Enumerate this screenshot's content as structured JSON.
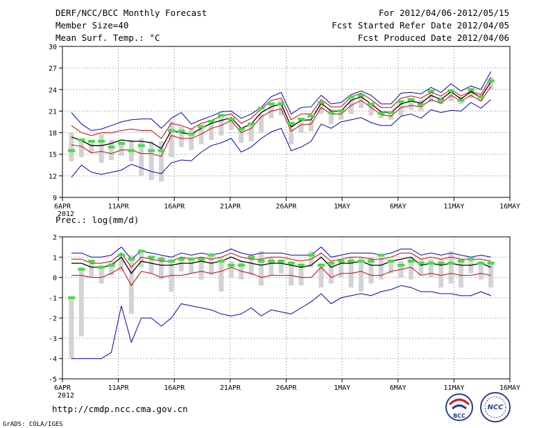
{
  "header": {
    "left": [
      "DERF/NCC/BCC Monthly Forecast",
      "Member Size=40",
      "Mean Surf. Temp.: °C"
    ],
    "right": [
      "For 2012/04/06-2012/05/15",
      "Fcst Started Refer Date 2012/04/05",
      "Fcst Produced Date 2012/04/06"
    ]
  },
  "footer": {
    "url": "http://cmdp.ncc.cma.gov.cn",
    "credit": "GrADS: COLA/IGES",
    "logo_bcc": "BCC",
    "logo_ncc": "NCC"
  },
  "colors": {
    "envelope": "#0000cc",
    "spread": "#cc0000",
    "mean": "#000000",
    "box": "#d3d3d3",
    "median": "#44dd44",
    "grid": "#777777"
  },
  "chart_data": [
    {
      "type": "box",
      "name": "temperature",
      "ylabel": "Mean Surf. Temp.: °C",
      "ylim": [
        9,
        30
      ],
      "yticks": [
        9,
        12,
        15,
        18,
        21,
        24,
        27,
        30
      ],
      "xlim": [
        0,
        40
      ],
      "xtick_positions": [
        0,
        5,
        10,
        15,
        20,
        25,
        30,
        35,
        40
      ],
      "xtick_labels": [
        "6APR",
        "11APR",
        "16APR",
        "21APR",
        "26APR",
        "1MAY",
        "6MAY",
        "11MAY",
        "16MAY"
      ],
      "year_label": "2012",
      "grid": true,
      "series": [
        {
          "name": "max",
          "values": [
            20.8,
            19.2,
            18.3,
            18.5,
            19.0,
            19.5,
            19.8,
            19.9,
            19.9,
            18.6,
            20.0,
            20.8,
            19.2,
            19.8,
            20.3,
            20.9,
            21.0,
            20.0,
            20.6,
            21.5,
            23.0,
            23.6,
            20.6,
            21.5,
            21.6,
            23.2,
            22.0,
            22.2,
            23.3,
            23.8,
            23.2,
            22.0,
            22.0,
            23.5,
            23.6,
            23.4,
            24.3,
            23.6,
            24.8,
            23.8,
            24.5,
            24.0,
            26.5
          ]
        },
        {
          "name": "upper",
          "values": [
            19.0,
            18.0,
            17.6,
            18.0,
            18.0,
            18.3,
            18.5,
            18.3,
            18.3,
            17.2,
            19.3,
            19.0,
            18.5,
            19.3,
            19.7,
            20.3,
            20.6,
            19.3,
            20.0,
            21.3,
            22.5,
            22.8,
            19.8,
            20.6,
            20.6,
            22.6,
            21.6,
            21.6,
            23.0,
            23.5,
            22.6,
            21.5,
            21.5,
            22.8,
            23.1,
            22.8,
            23.6,
            23.1,
            24.0,
            23.1,
            23.8,
            23.3,
            25.7
          ]
        },
        {
          "name": "mean",
          "values": [
            17.4,
            16.9,
            16.2,
            16.2,
            16.5,
            17.0,
            16.8,
            16.8,
            16.6,
            15.8,
            18.3,
            18.0,
            17.8,
            18.6,
            19.3,
            19.7,
            20.1,
            18.6,
            19.2,
            20.8,
            21.6,
            22.0,
            18.8,
            19.7,
            19.8,
            22.1,
            21.0,
            21.0,
            22.5,
            23.0,
            22.0,
            20.9,
            20.8,
            22.0,
            22.4,
            22.1,
            23.2,
            22.6,
            23.7,
            22.7,
            23.7,
            22.9,
            25.1
          ]
        },
        {
          "name": "lower",
          "values": [
            16.3,
            16.1,
            15.2,
            15.4,
            15.1,
            15.6,
            15.6,
            15.1,
            15.1,
            14.7,
            17.6,
            17.2,
            17.2,
            17.8,
            18.6,
            19.0,
            19.7,
            18.0,
            18.6,
            20.2,
            21.0,
            21.3,
            18.2,
            19.1,
            19.2,
            21.5,
            20.6,
            20.6,
            21.8,
            22.5,
            21.5,
            20.5,
            20.3,
            21.5,
            21.8,
            21.6,
            22.6,
            22.1,
            23.2,
            22.4,
            23.2,
            22.4,
            24.4
          ]
        },
        {
          "name": "min",
          "values": [
            11.8,
            13.5,
            12.5,
            12.2,
            12.5,
            12.8,
            13.6,
            13.1,
            12.6,
            12.3,
            13.8,
            14.2,
            14.1,
            15.3,
            16.2,
            16.6,
            17.2,
            15.3,
            16.0,
            17.2,
            18.1,
            18.6,
            15.5,
            16.0,
            16.8,
            19.2,
            18.6,
            19.5,
            19.8,
            20.1,
            19.4,
            19.0,
            19.0,
            20.3,
            20.6,
            20.0,
            21.2,
            20.8,
            21.1,
            21.0,
            22.2,
            21.4,
            22.6
          ]
        },
        {
          "name": "box_high",
          "values": [
            18.0,
            17.0,
            16.8,
            17.8,
            17.0,
            16.8,
            17.0,
            17.2,
            16.8,
            16.8,
            19.6,
            18.8,
            18.5,
            19.2,
            19.4,
            20.2,
            20.0,
            18.5,
            19.0,
            20.6,
            21.8,
            22.5,
            19.2,
            19.6,
            19.8,
            22.3,
            21.3,
            21.3,
            22.8,
            23.2,
            22.2,
            20.8,
            20.8,
            22.5,
            22.8,
            22.6,
            23.8,
            23.0,
            23.8,
            23.0,
            23.7,
            23.2,
            25.7
          ]
        },
        {
          "name": "box_low",
          "values": [
            14.0,
            14.6,
            15.2,
            13.8,
            14.2,
            14.8,
            14.0,
            12.0,
            11.4,
            11.2,
            14.6,
            16.0,
            15.6,
            16.4,
            17.0,
            17.6,
            18.4,
            16.6,
            16.8,
            18.0,
            20.0,
            20.4,
            16.4,
            18.0,
            18.2,
            20.6,
            19.2,
            19.8,
            20.6,
            21.4,
            20.4,
            20.0,
            19.8,
            20.4,
            21.2,
            21.0,
            22.2,
            22.0,
            22.4,
            22.0,
            22.8,
            22.4,
            24.0
          ]
        },
        {
          "name": "median",
          "values": [
            15.5,
            17.0,
            16.8,
            16.8,
            16.0,
            16.5,
            15.5,
            16.2,
            15.5,
            15.5,
            18.3,
            18.2,
            17.8,
            18.8,
            19.6,
            20.4,
            19.9,
            18.5,
            19.2,
            21.4,
            22.0,
            22.0,
            19.3,
            19.9,
            20.3,
            22.2,
            20.8,
            21.0,
            23.0,
            23.2,
            22.0,
            20.7,
            20.8,
            22.3,
            22.6,
            21.9,
            23.8,
            22.5,
            23.8,
            22.5,
            24.0,
            23.0,
            25.2
          ]
        }
      ]
    },
    {
      "type": "box",
      "name": "precipitation",
      "ylabel": "Prec.: log(mm/d)",
      "ylim": [
        -5,
        2
      ],
      "yticks": [
        -5,
        -4,
        -3,
        -2,
        -1,
        0,
        1,
        2
      ],
      "xlim": [
        0,
        40
      ],
      "xtick_positions": [
        0,
        5,
        10,
        15,
        20,
        25,
        30,
        35,
        40
      ],
      "xtick_labels": [
        "6APR",
        "11APR",
        "16APR",
        "21APR",
        "26APR",
        "1MAY",
        "6MAY",
        "11MAY",
        "16MAY"
      ],
      "year_label": "2012",
      "grid": true,
      "series": [
        {
          "name": "max",
          "values": [
            1.2,
            1.2,
            1.0,
            1.0,
            1.1,
            1.5,
            0.9,
            1.3,
            1.2,
            1.1,
            1.0,
            1.2,
            1.1,
            1.2,
            1.1,
            1.2,
            1.4,
            1.2,
            1.1,
            1.2,
            1.2,
            1.2,
            1.1,
            1.1,
            1.1,
            1.5,
            1.0,
            1.1,
            1.2,
            1.2,
            1.2,
            1.1,
            1.2,
            1.4,
            1.4,
            1.1,
            1.2,
            1.1,
            1.2,
            1.1,
            1.0,
            1.1,
            1.0
          ]
        },
        {
          "name": "upper",
          "values": [
            0.9,
            0.9,
            0.7,
            0.7,
            0.8,
            1.2,
            0.5,
            1.0,
            0.9,
            0.8,
            0.8,
            1.0,
            0.9,
            1.0,
            0.9,
            1.0,
            1.2,
            1.0,
            0.9,
            0.9,
            1.0,
            1.0,
            0.9,
            0.8,
            0.9,
            1.2,
            0.8,
            0.9,
            1.0,
            1.0,
            0.9,
            0.9,
            1.0,
            1.2,
            1.2,
            0.9,
            1.0,
            0.9,
            1.0,
            0.9,
            0.9,
            0.9,
            0.8
          ]
        },
        {
          "name": "mean",
          "values": [
            0.7,
            0.7,
            0.5,
            0.5,
            0.6,
            1.0,
            0.2,
            0.8,
            0.7,
            0.6,
            0.6,
            0.7,
            0.7,
            0.8,
            0.7,
            0.8,
            1.0,
            0.8,
            0.7,
            0.6,
            0.7,
            0.7,
            0.6,
            0.5,
            0.6,
            1.0,
            0.5,
            0.7,
            0.7,
            0.8,
            0.6,
            0.6,
            0.8,
            0.9,
            1.0,
            0.6,
            0.7,
            0.6,
            0.7,
            0.6,
            0.6,
            0.7,
            0.5
          ]
        },
        {
          "name": "lower",
          "values": [
            0.1,
            0.1,
            0.0,
            0.0,
            0.2,
            0.5,
            -0.4,
            0.3,
            0.2,
            0.0,
            0.1,
            0.1,
            0.2,
            0.3,
            0.2,
            0.3,
            0.5,
            0.3,
            0.2,
            0.0,
            0.1,
            0.1,
            0.1,
            0.0,
            0.0,
            0.5,
            0.0,
            0.2,
            0.2,
            0.3,
            0.1,
            0.1,
            0.3,
            0.4,
            0.5,
            0.1,
            0.2,
            0.1,
            0.2,
            0.1,
            0.1,
            0.2,
            0.1
          ]
        },
        {
          "name": "min",
          "values": [
            -4.0,
            -4.0,
            -4.0,
            -4.0,
            -3.7,
            -1.4,
            -3.2,
            -2.0,
            -2.0,
            -2.4,
            -2.0,
            -1.3,
            -1.4,
            -1.5,
            -1.6,
            -1.8,
            -1.9,
            -1.8,
            -1.5,
            -1.9,
            -1.6,
            -1.7,
            -1.8,
            -1.5,
            -1.2,
            -0.8,
            -1.3,
            -1.0,
            -0.9,
            -0.8,
            -0.9,
            -0.7,
            -0.6,
            -0.4,
            -0.5,
            -0.7,
            -0.7,
            -0.8,
            -0.8,
            -0.9,
            -0.9,
            -0.7,
            -0.9
          ]
        },
        {
          "name": "box_high",
          "values": [
            -1.0,
            0.5,
            0.8,
            0.6,
            0.8,
            1.0,
            1.1,
            1.3,
            1.0,
            1.0,
            0.9,
            1.0,
            1.0,
            1.0,
            1.2,
            1.0,
            0.8,
            0.8,
            1.1,
            1.3,
            1.0,
            0.9,
            0.8,
            0.7,
            1.3,
            0.7,
            0.8,
            0.9,
            1.0,
            1.0,
            1.0,
            1.1,
            0.9,
            0.8,
            1.0,
            0.9,
            0.9,
            0.9,
            1.3,
            0.9,
            0.9,
            0.8,
            0.8
          ]
        },
        {
          "name": "box_low",
          "values": [
            -4.0,
            -2.9,
            0.0,
            -0.3,
            0.1,
            0.3,
            -1.8,
            0.5,
            0.2,
            -0.1,
            -0.7,
            0.3,
            0.2,
            -0.1,
            0.1,
            -0.7,
            0.0,
            -0.1,
            0.1,
            -0.4,
            0.1,
            0.2,
            -0.4,
            -0.4,
            0.5,
            -0.5,
            -0.3,
            0.0,
            -0.5,
            -0.7,
            -0.3,
            -0.1,
            0.2,
            0.0,
            -0.1,
            0.1,
            0.0,
            -0.5,
            -0.3,
            -0.5,
            0.2,
            -0.1,
            -0.5
          ]
        },
        {
          "name": "median",
          "values": [
            -1.0,
            0.4,
            0.8,
            0.5,
            0.6,
            1.1,
            0.9,
            1.3,
            1.0,
            0.9,
            0.8,
            0.9,
            0.9,
            0.9,
            1.1,
            0.8,
            0.6,
            0.6,
            1.0,
            0.8,
            0.8,
            0.8,
            0.7,
            0.6,
            1.1,
            0.6,
            0.7,
            0.8,
            0.8,
            0.8,
            0.8,
            1.1,
            0.8,
            0.6,
            0.8,
            0.7,
            0.7,
            0.7,
            0.7,
            0.8,
            0.9,
            0.7,
            0.7
          ]
        }
      ]
    }
  ]
}
